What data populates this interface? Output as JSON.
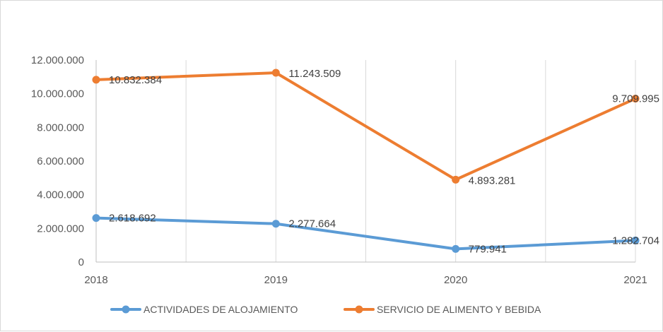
{
  "chart_data": {
    "type": "line",
    "title": "",
    "xlabel": "",
    "ylabel": "",
    "categories": [
      "2018",
      "2019",
      "2020",
      "2021"
    ],
    "ylim": [
      0,
      12000000
    ],
    "yticks": [
      0,
      2000000,
      4000000,
      6000000,
      8000000,
      10000000,
      12000000
    ],
    "ytick_labels": [
      "0",
      "2.000.000",
      "4.000.000",
      "6.000.000",
      "8.000.000",
      "10.000.000",
      "12.000.000"
    ],
    "grid": "vertical",
    "legend_position": "bottom",
    "series": [
      {
        "name": "ACTIVIDADES DE ALOJAMIENTO",
        "color": "#5b9bd5",
        "values": [
          2618692,
          2277664,
          779941,
          1282704
        ],
        "labels": [
          "2.618.692",
          "2.277.664",
          "779.941",
          "1.282.704"
        ]
      },
      {
        "name": "SERVICIO DE ALIMENTO Y BEBIDA",
        "color": "#ed7d31",
        "values": [
          10832384,
          11243509,
          4893281,
          9709995
        ],
        "labels": [
          "10.832.384",
          "11.243.509",
          "4.893.281",
          "9.709.995"
        ]
      }
    ]
  }
}
